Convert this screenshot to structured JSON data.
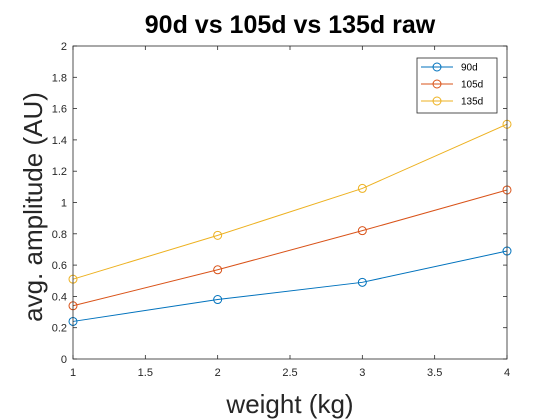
{
  "chart_data": {
    "type": "line",
    "title": "90d vs 105d vs 135d raw",
    "xlabel": "weight (kg)",
    "ylabel": "avg. amplitude (AU)",
    "x": [
      1,
      2,
      3,
      4
    ],
    "xlim": [
      1,
      4
    ],
    "ylim": [
      0,
      2
    ],
    "xticks": [
      1,
      1.5,
      2,
      2.5,
      3,
      3.5,
      4
    ],
    "xtick_labels": [
      "1",
      "1.5",
      "2",
      "2.5",
      "3",
      "3.5",
      "4"
    ],
    "yticks": [
      0,
      0.2,
      0.4,
      0.6,
      0.8,
      1,
      1.2,
      1.4,
      1.6,
      1.8,
      2
    ],
    "ytick_labels": [
      "0",
      "0.2",
      "0.4",
      "0.6",
      "0.8",
      "1",
      "1.2",
      "1.4",
      "1.6",
      "1.8",
      "2"
    ],
    "grid": false,
    "legend_position": "top-right",
    "series": [
      {
        "name": "90d",
        "color": "#0072BD",
        "values": [
          0.24,
          0.38,
          0.49,
          0.69
        ]
      },
      {
        "name": "105d",
        "color": "#D95319",
        "values": [
          0.34,
          0.57,
          0.82,
          1.08
        ]
      },
      {
        "name": "135d",
        "color": "#EDB120",
        "values": [
          0.51,
          0.79,
          1.09,
          1.5
        ]
      }
    ]
  }
}
